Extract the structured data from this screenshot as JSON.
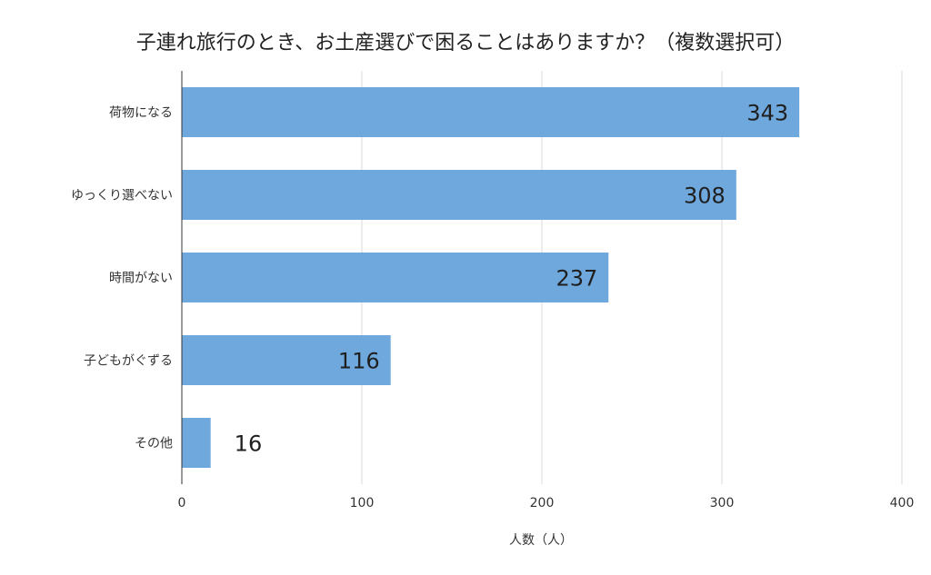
{
  "chart_data": {
    "type": "bar",
    "orientation": "horizontal",
    "title": "子連れ旅行のとき、お土産選びで困ることはありますか？（複数選択可）",
    "xlabel": "人数（人）",
    "ylabel": "",
    "categories": [
      "荷物になる",
      "ゆっくり選べない",
      "時間がない",
      "子どもがぐずる",
      "その他"
    ],
    "values": [
      343,
      308,
      237,
      116,
      16
    ],
    "xlim": [
      0,
      400
    ],
    "xticks": [
      0,
      100,
      200,
      300,
      400
    ],
    "grid": true,
    "legend": "none",
    "colors": {
      "bar": "#6fa8dc",
      "grid": "#d9d9d9",
      "axis": "#333333"
    }
  }
}
